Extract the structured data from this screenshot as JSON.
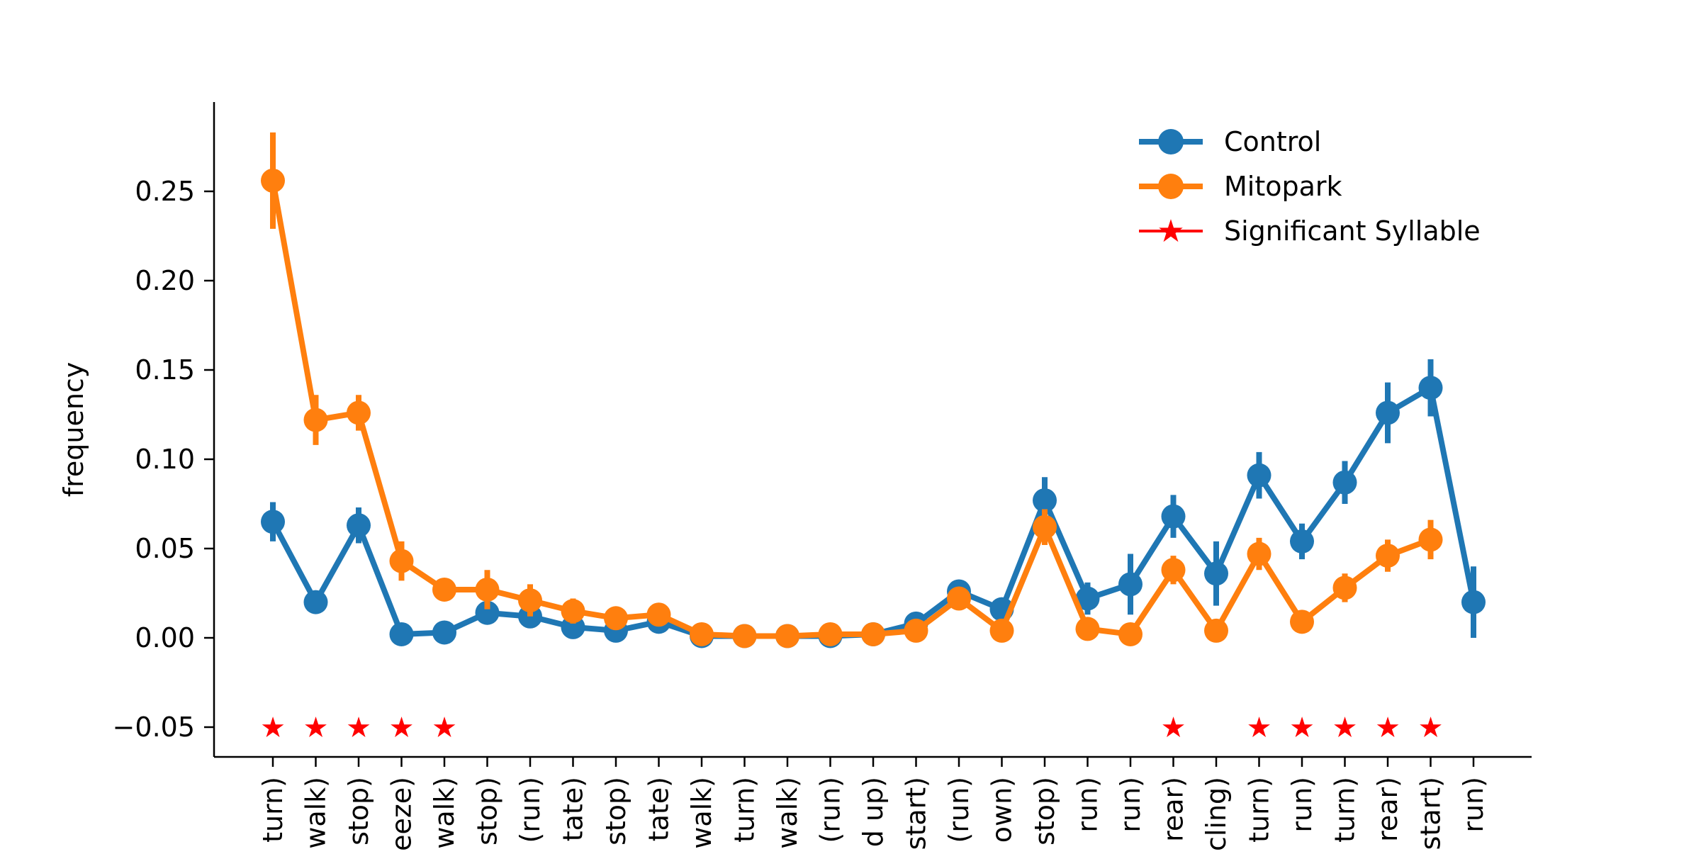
{
  "chart_data": {
    "type": "line",
    "title": "",
    "xlabel": "",
    "ylabel": "frequency",
    "ylim": [
      -0.065,
      0.285
    ],
    "yticks": [
      -0.05,
      0.0,
      0.05,
      0.1,
      0.15,
      0.2,
      0.25
    ],
    "ytick_labels": [
      "−0.05",
      "0.00",
      "0.05",
      "0.10",
      "0.15",
      "0.20",
      "0.25"
    ],
    "grid": false,
    "legend_position": "top-right",
    "categories": [
      "turn)",
      "walk)",
      "stop)",
      "eeze)",
      "walk)",
      "stop)",
      "(run)",
      "tate)",
      "stop)",
      "tate)",
      "walk)",
      "turn)",
      "walk)",
      "(run)",
      "d up)",
      "start)",
      "(run)",
      "own)",
      "stop)",
      "run)",
      "run)",
      "rear)",
      "cling)",
      "turn)",
      "run)",
      "turn)",
      "rear)",
      "start)",
      "run)"
    ],
    "series": [
      {
        "name": "Control",
        "color": "#1f77b4",
        "values": [
          0.065,
          0.02,
          0.063,
          0.002,
          0.003,
          0.014,
          0.012,
          0.006,
          0.004,
          0.009,
          0.001,
          0.001,
          0.001,
          0.001,
          0.002,
          0.008,
          0.026,
          0.016,
          0.077,
          0.022,
          0.03,
          0.068,
          0.036,
          0.091,
          0.054,
          0.087,
          0.126,
          0.14,
          0.02
        ],
        "errors": [
          0.011,
          0.003,
          0.01,
          0.002,
          0.002,
          0.004,
          0.004,
          0.003,
          0.002,
          0.003,
          0.001,
          0.001,
          0.001,
          0.001,
          0.001,
          0.003,
          0.005,
          0.005,
          0.013,
          0.009,
          0.017,
          0.012,
          0.018,
          0.013,
          0.01,
          0.012,
          0.017,
          0.016,
          0.02
        ]
      },
      {
        "name": "Mitopark",
        "color": "#ff7f0e",
        "values": [
          0.256,
          0.122,
          0.126,
          0.043,
          0.027,
          0.027,
          0.021,
          0.015,
          0.011,
          0.013,
          0.002,
          0.001,
          0.001,
          0.002,
          0.002,
          0.004,
          0.022,
          0.004,
          0.062,
          0.005,
          0.002,
          0.038,
          0.004,
          0.047,
          0.009,
          0.028,
          0.046,
          0.055,
          null
        ],
        "errors": [
          0.027,
          0.014,
          0.01,
          0.011,
          0.006,
          0.011,
          0.009,
          0.007,
          0.004,
          0.006,
          0.001,
          0.001,
          0.001,
          0.001,
          0.001,
          0.002,
          0.006,
          0.002,
          0.01,
          0.003,
          0.002,
          0.008,
          0.003,
          0.009,
          0.004,
          0.008,
          0.009,
          0.011,
          null
        ]
      }
    ],
    "significant": {
      "name": "Significant Syllable",
      "color": "#ff0000",
      "y": -0.05,
      "indices": [
        0,
        1,
        2,
        3,
        4,
        21,
        23,
        24,
        25,
        26,
        27
      ]
    }
  }
}
